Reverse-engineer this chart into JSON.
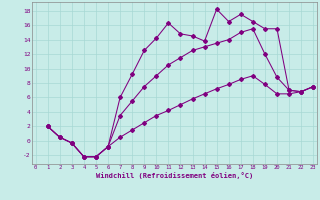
{
  "xlabel": "Windchill (Refroidissement éolien,°C)",
  "bg_color": "#c8ece8",
  "grid_color": "#a8d8d4",
  "line_color": "#800080",
  "spine_color": "#888888",
  "text_color": "#800080",
  "xlim": [
    -0.3,
    23.3
  ],
  "ylim": [
    -3.2,
    19.2
  ],
  "yticks": [
    -2,
    0,
    2,
    4,
    6,
    8,
    10,
    12,
    14,
    16,
    18
  ],
  "xticks": [
    0,
    1,
    2,
    3,
    4,
    5,
    6,
    7,
    8,
    9,
    10,
    11,
    12,
    13,
    14,
    15,
    16,
    17,
    18,
    19,
    20,
    21,
    22,
    23
  ],
  "line1_x": [
    1,
    2,
    3,
    4,
    5,
    6,
    7,
    8,
    9,
    10,
    11,
    12,
    13,
    14,
    15,
    16,
    17,
    18,
    19,
    20,
    21,
    22,
    23
  ],
  "line1_y": [
    2,
    0.5,
    -0.3,
    -2.2,
    -2.2,
    -0.8,
    6.0,
    9.2,
    12.5,
    14.2,
    16.3,
    14.8,
    14.5,
    13.8,
    18.2,
    16.5,
    17.5,
    16.5,
    15.5,
    15.5,
    7.0,
    6.8,
    7.5
  ],
  "line2_x": [
    1,
    2,
    3,
    4,
    5,
    6,
    7,
    8,
    9,
    10,
    11,
    12,
    13,
    14,
    15,
    16,
    17,
    18,
    19,
    20,
    21,
    22,
    23
  ],
  "line2_y": [
    2,
    0.5,
    -0.3,
    -2.2,
    -2.2,
    -0.8,
    3.5,
    5.5,
    7.5,
    9.0,
    10.5,
    11.5,
    12.5,
    13.0,
    13.5,
    14.0,
    15.0,
    15.5,
    12.0,
    8.8,
    7.0,
    6.8,
    7.5
  ],
  "line3_x": [
    1,
    2,
    3,
    4,
    5,
    6,
    7,
    8,
    9,
    10,
    11,
    12,
    13,
    14,
    15,
    16,
    17,
    18,
    19,
    20,
    21,
    22,
    23
  ],
  "line3_y": [
    2,
    0.5,
    -0.3,
    -2.2,
    -2.2,
    -0.8,
    0.5,
    1.5,
    2.5,
    3.5,
    4.2,
    5.0,
    5.8,
    6.5,
    7.2,
    7.8,
    8.5,
    9.0,
    7.8,
    6.5,
    6.5,
    6.8,
    7.5
  ]
}
